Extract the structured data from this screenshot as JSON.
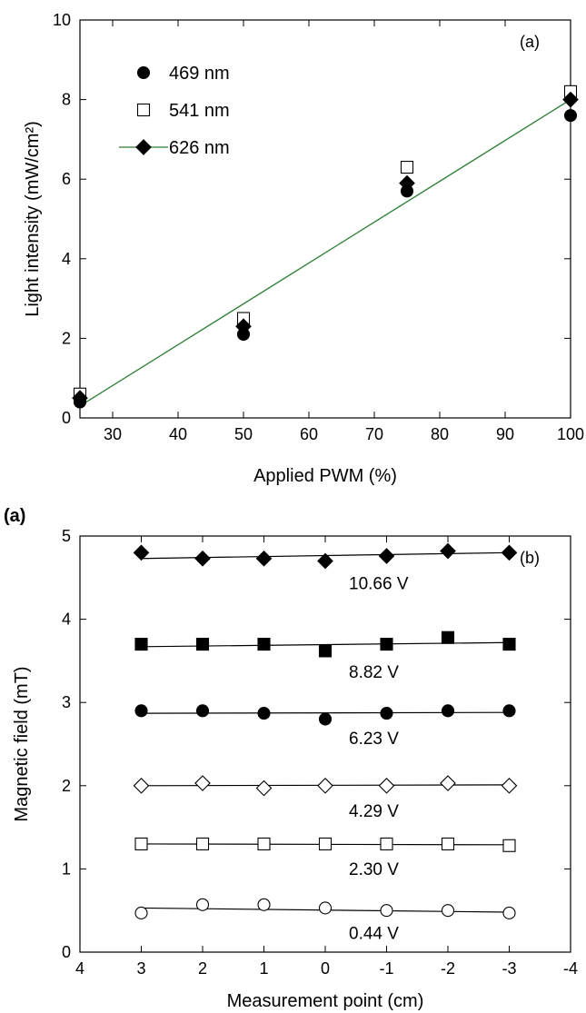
{
  "figure_label_a": "(a)",
  "chart_data": [
    {
      "type": "scatter",
      "panel_label": "(a)",
      "xlabel": "Applied PWM (%)",
      "ylabel": "Light intensity (mW/cm²)",
      "xlim": [
        25,
        100
      ],
      "ylim": [
        0,
        10
      ],
      "xticks": [
        30,
        40,
        50,
        60,
        70,
        80,
        90,
        100
      ],
      "yticks": [
        0,
        2,
        4,
        6,
        8,
        10
      ],
      "grid": false,
      "legend_position": "top-left",
      "series": [
        {
          "name": "469 nm",
          "marker": "filled-circle",
          "x": [
            25,
            50,
            75,
            100
          ],
          "y": [
            0.4,
            2.1,
            5.7,
            7.6
          ]
        },
        {
          "name": "541 nm",
          "marker": "open-square",
          "x": [
            25,
            50,
            75,
            100
          ],
          "y": [
            0.6,
            2.5,
            6.3,
            8.2
          ]
        },
        {
          "name": "626 nm",
          "marker": "filled-diamond",
          "x": [
            25,
            50,
            75,
            100
          ],
          "y": [
            0.5,
            2.3,
            5.9,
            8.0
          ]
        }
      ],
      "fit_line": {
        "x": [
          25,
          100
        ],
        "y": [
          0.3,
          8.0
        ],
        "color": "#2e7d32"
      }
    },
    {
      "type": "scatter",
      "panel_label": "(b)",
      "xlabel": "Measurement point (cm)",
      "ylabel": "Magnetic field (mT)",
      "xlim": [
        4,
        -4
      ],
      "ylim": [
        0,
        5
      ],
      "xticks": [
        4,
        3,
        2,
        1,
        0,
        -1,
        -2,
        -3,
        -4
      ],
      "yticks": [
        0,
        1,
        2,
        3,
        4,
        5
      ],
      "grid": false,
      "x": [
        3,
        2,
        1,
        0,
        -1,
        -2,
        -3
      ],
      "series": [
        {
          "name": "10.66 V",
          "marker": "filled-diamond",
          "y": [
            4.8,
            4.73,
            4.73,
            4.7,
            4.76,
            4.82,
            4.8
          ],
          "fit": [
            4.73,
            4.8
          ]
        },
        {
          "name": "8.82 V",
          "marker": "filled-square",
          "y": [
            3.7,
            3.7,
            3.7,
            3.62,
            3.7,
            3.78,
            3.7
          ],
          "fit": [
            3.67,
            3.72
          ]
        },
        {
          "name": "6.23 V",
          "marker": "filled-circle",
          "y": [
            2.9,
            2.9,
            2.87,
            2.8,
            2.87,
            2.9,
            2.9
          ],
          "fit": [
            2.87,
            2.88
          ]
        },
        {
          "name": "4.29 V",
          "marker": "open-diamond",
          "y": [
            2.0,
            2.03,
            1.97,
            2.0,
            2.0,
            2.03,
            2.0
          ],
          "fit": [
            2.0,
            2.01
          ]
        },
        {
          "name": "2.30 V",
          "marker": "open-square",
          "y": [
            1.3,
            1.3,
            1.3,
            1.3,
            1.3,
            1.3,
            1.28
          ],
          "fit": [
            1.3,
            1.29
          ]
        },
        {
          "name": "0.44 V",
          "marker": "open-circle",
          "y": [
            0.47,
            0.57,
            0.57,
            0.53,
            0.5,
            0.5,
            0.47
          ],
          "fit": [
            0.53,
            0.48
          ]
        }
      ]
    }
  ]
}
